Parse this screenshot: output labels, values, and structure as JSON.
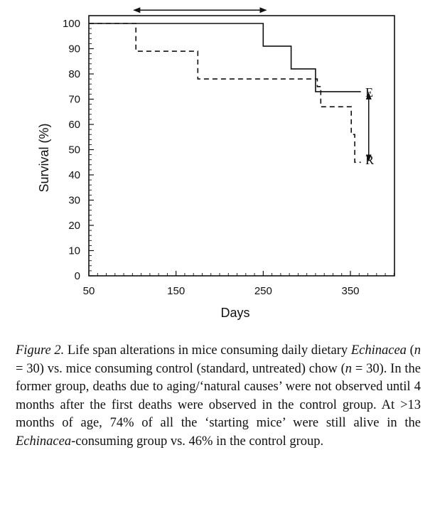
{
  "chart_data": {
    "type": "line",
    "subtype": "step",
    "xlabel": "Days",
    "ylabel": "Survival (%)",
    "xlim": [
      50,
      400
    ],
    "ylim": [
      0,
      100
    ],
    "x_ticks": [
      50,
      150,
      250,
      350
    ],
    "x_tick_labels": [
      "50",
      "150",
      "250",
      "350"
    ],
    "y_ticks": [
      0,
      10,
      20,
      30,
      40,
      50,
      60,
      70,
      80,
      90,
      100
    ],
    "y_tick_labels": [
      "0",
      "10",
      "20",
      "30",
      "40",
      "50",
      "60",
      "70",
      "80",
      "90",
      "100"
    ],
    "series": [
      {
        "name": "E",
        "label": "E",
        "style": "solid",
        "x": [
          50,
          250,
          250,
          282,
          282,
          310,
          310,
          362
        ],
        "y": [
          100,
          100,
          91,
          91,
          82,
          82,
          73,
          73
        ]
      },
      {
        "name": "R",
        "label": "R",
        "style": "dashed",
        "x": [
          50,
          104,
          104,
          175,
          175,
          312,
          312,
          316,
          316,
          351,
          351,
          355,
          355,
          362
        ],
        "y": [
          100,
          100,
          89,
          89,
          78,
          78,
          75,
          75,
          67,
          67,
          56,
          56,
          45,
          45
        ]
      }
    ],
    "annotations": [
      {
        "type": "double-arrow",
        "orientation": "horizontal",
        "x_from": 100,
        "x_to": 255,
        "y": 105
      },
      {
        "type": "double-arrow",
        "orientation": "vertical",
        "x": 371,
        "y_from": 73,
        "y_to": 45
      }
    ]
  },
  "caption": {
    "label": "Figure 2.",
    "t1": " Life span alterations in mice consuming daily dietary ",
    "italic1": "Echinacea",
    "t2": " (",
    "n1": "n",
    "t3": " = 30) vs. mice consuming control (standard, untreated) chow (",
    "n2": "n",
    "t4": " = 30). In the former group, deaths due to aging/‘natural causes’ were not observed until 4 months after the first deaths were observed in the control group. At >13 months of age, 74% of all the ‘starting mice’ were still alive in the ",
    "italic2": "Echinacea",
    "t5": "-consuming group vs. 46% in the control group."
  }
}
